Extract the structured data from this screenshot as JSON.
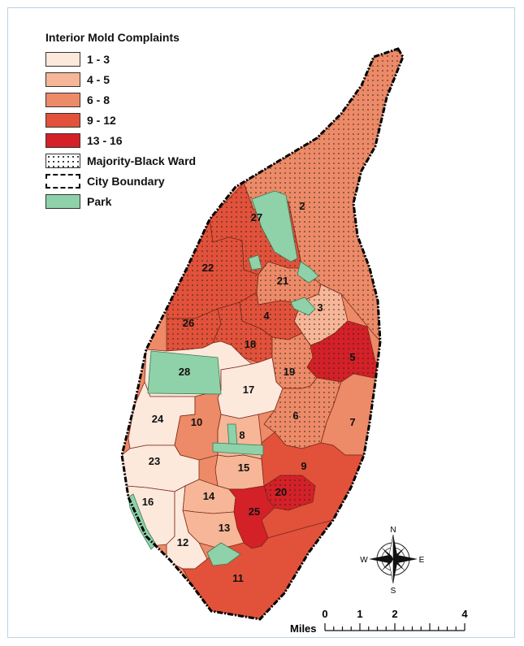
{
  "legend": {
    "title": "Interior Mold Complaints",
    "items": [
      {
        "label": "1 - 3",
        "color": "#fde8dc",
        "kind": "fill"
      },
      {
        "label": "4 - 5",
        "color": "#f6b697",
        "kind": "fill"
      },
      {
        "label": "6 - 8",
        "color": "#ed8a67",
        "kind": "fill"
      },
      {
        "label": "9 - 12",
        "color": "#e2513a",
        "kind": "fill"
      },
      {
        "label": "13 - 16",
        "color": "#d42027",
        "kind": "fill"
      },
      {
        "label": "Majority-Black Ward",
        "color": "#ffffff",
        "kind": "dots"
      },
      {
        "label": "City Boundary",
        "color": "#ffffff",
        "kind": "boundary"
      },
      {
        "label": "Park",
        "color": "#8fd1a9",
        "kind": "fill"
      }
    ]
  },
  "colors": {
    "c1": "#fde8dc",
    "c2": "#f6b697",
    "c3": "#ed8a67",
    "c4": "#e2513a",
    "c5": "#d42027",
    "park": "#8fd1a9"
  },
  "wards": [
    {
      "id": "2",
      "label": "2",
      "class": "6 - 8",
      "majority_black": true
    },
    {
      "id": "27",
      "label": "27",
      "class": "9 - 12",
      "majority_black": true
    },
    {
      "id": "22",
      "label": "22",
      "class": "9 - 12",
      "majority_black": true
    },
    {
      "id": "21",
      "label": "21",
      "class": "6 - 8",
      "majority_black": true
    },
    {
      "id": "3",
      "label": "3",
      "class": "4 - 5",
      "majority_black": true
    },
    {
      "id": "4",
      "label": "4",
      "class": "9 - 12",
      "majority_black": true
    },
    {
      "id": "26",
      "label": "26",
      "class": "9 - 12",
      "majority_black": true
    },
    {
      "id": "18",
      "label": "18",
      "class": "9 - 12",
      "majority_black": true
    },
    {
      "id": "5",
      "label": "5",
      "class": "13 - 16",
      "majority_black": true
    },
    {
      "id": "19",
      "label": "19",
      "class": "6 - 8",
      "majority_black": true
    },
    {
      "id": "28",
      "label": "28",
      "class": "1 - 3",
      "majority_black": false
    },
    {
      "id": "17",
      "label": "17",
      "class": "1 - 3",
      "majority_black": false
    },
    {
      "id": "24",
      "label": "24",
      "class": "1 - 3",
      "majority_black": false
    },
    {
      "id": "10",
      "label": "10",
      "class": "6 - 8",
      "majority_black": false
    },
    {
      "id": "8",
      "label": "8",
      "class": "4 - 5",
      "majority_black": false
    },
    {
      "id": "6",
      "label": "6",
      "class": "6 - 8",
      "majority_black": true
    },
    {
      "id": "7",
      "label": "7",
      "class": "6 - 8",
      "majority_black": false
    },
    {
      "id": "23",
      "label": "23",
      "class": "1 - 3",
      "majority_black": false
    },
    {
      "id": "15",
      "label": "15",
      "class": "4 - 5",
      "majority_black": false
    },
    {
      "id": "9",
      "label": "9",
      "class": "9 - 12",
      "majority_black": false
    },
    {
      "id": "20",
      "label": "20",
      "class": "13 - 16",
      "majority_black": true
    },
    {
      "id": "14",
      "label": "14",
      "class": "4 - 5",
      "majority_black": false
    },
    {
      "id": "16",
      "label": "16",
      "class": "1 - 3",
      "majority_black": false
    },
    {
      "id": "25",
      "label": "25",
      "class": "13 - 16",
      "majority_black": false
    },
    {
      "id": "13",
      "label": "13",
      "class": "4 - 5",
      "majority_black": false
    },
    {
      "id": "12",
      "label": "12",
      "class": "1 - 3",
      "majority_black": false
    },
    {
      "id": "11",
      "label": "11",
      "class": "9 - 12",
      "majority_black": false
    }
  ],
  "compass": {
    "n": "N",
    "s": "S",
    "e": "E",
    "w": "W"
  },
  "scale": {
    "title": "Miles",
    "ticks": [
      "0",
      "1",
      "2",
      "4"
    ]
  }
}
